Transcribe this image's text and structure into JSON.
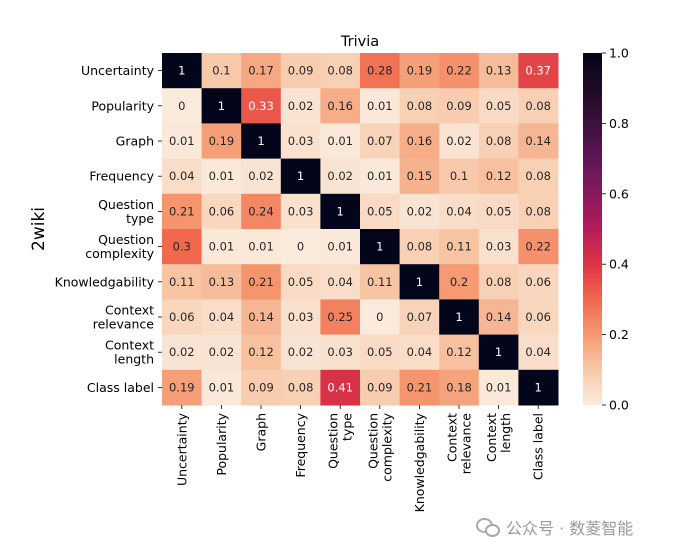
{
  "chart_data": {
    "type": "heatmap",
    "title": "Trivia",
    "ylabel": "2wiki",
    "xlabel": "",
    "rows": [
      [
        "Uncertainty"
      ],
      [
        "Popularity"
      ],
      [
        "Graph"
      ],
      [
        "Frequency"
      ],
      [
        "Question",
        "type"
      ],
      [
        "Question",
        "complexity"
      ],
      [
        "Knowledgability"
      ],
      [
        "Context",
        "relevance"
      ],
      [
        "Context",
        "length"
      ],
      [
        "Class label"
      ]
    ],
    "columns": [
      [
        "Uncertainty"
      ],
      [
        "Popularity"
      ],
      [
        "Graph"
      ],
      [
        "Frequency"
      ],
      [
        "Question",
        "type"
      ],
      [
        "Question",
        "complexity"
      ],
      [
        "Knowledgability"
      ],
      [
        "Context",
        "relevance"
      ],
      [
        "Context",
        "length"
      ],
      [
        "Class label"
      ]
    ],
    "values": [
      [
        1,
        0.1,
        0.17,
        0.09,
        0.08,
        0.28,
        0.19,
        0.22,
        0.13,
        0.37
      ],
      [
        0,
        1,
        0.33,
        0.02,
        0.16,
        0.01,
        0.08,
        0.09,
        0.05,
        0.08
      ],
      [
        0.01,
        0.19,
        1,
        0.03,
        0.01,
        0.07,
        0.16,
        0.02,
        0.08,
        0.14
      ],
      [
        0.04,
        0.01,
        0.02,
        1,
        0.02,
        0.01,
        0.15,
        0.1,
        0.12,
        0.08
      ],
      [
        0.21,
        0.06,
        0.24,
        0.03,
        1,
        0.05,
        0.02,
        0.04,
        0.05,
        0.08
      ],
      [
        0.3,
        0.01,
        0.01,
        0,
        0.01,
        1,
        0.08,
        0.11,
        0.03,
        0.22
      ],
      [
        0.11,
        0.13,
        0.21,
        0.05,
        0.04,
        0.11,
        1,
        0.2,
        0.08,
        0.06
      ],
      [
        0.06,
        0.04,
        0.14,
        0.03,
        0.25,
        0,
        0.07,
        1,
        0.14,
        0.06
      ],
      [
        0.02,
        0.02,
        0.12,
        0.02,
        0.03,
        0.05,
        0.04,
        0.12,
        1,
        0.04
      ],
      [
        0.19,
        0.01,
        0.09,
        0.08,
        0.41,
        0.09,
        0.21,
        0.18,
        0.01,
        1
      ]
    ],
    "colorbar": {
      "range": [
        0,
        1
      ],
      "ticks": [
        "0.0",
        "0.2",
        "0.4",
        "0.6",
        "0.8",
        "1.0"
      ],
      "colormap": "rocket_r"
    }
  },
  "watermark": {
    "text": "公众号 · 数菱智能"
  }
}
